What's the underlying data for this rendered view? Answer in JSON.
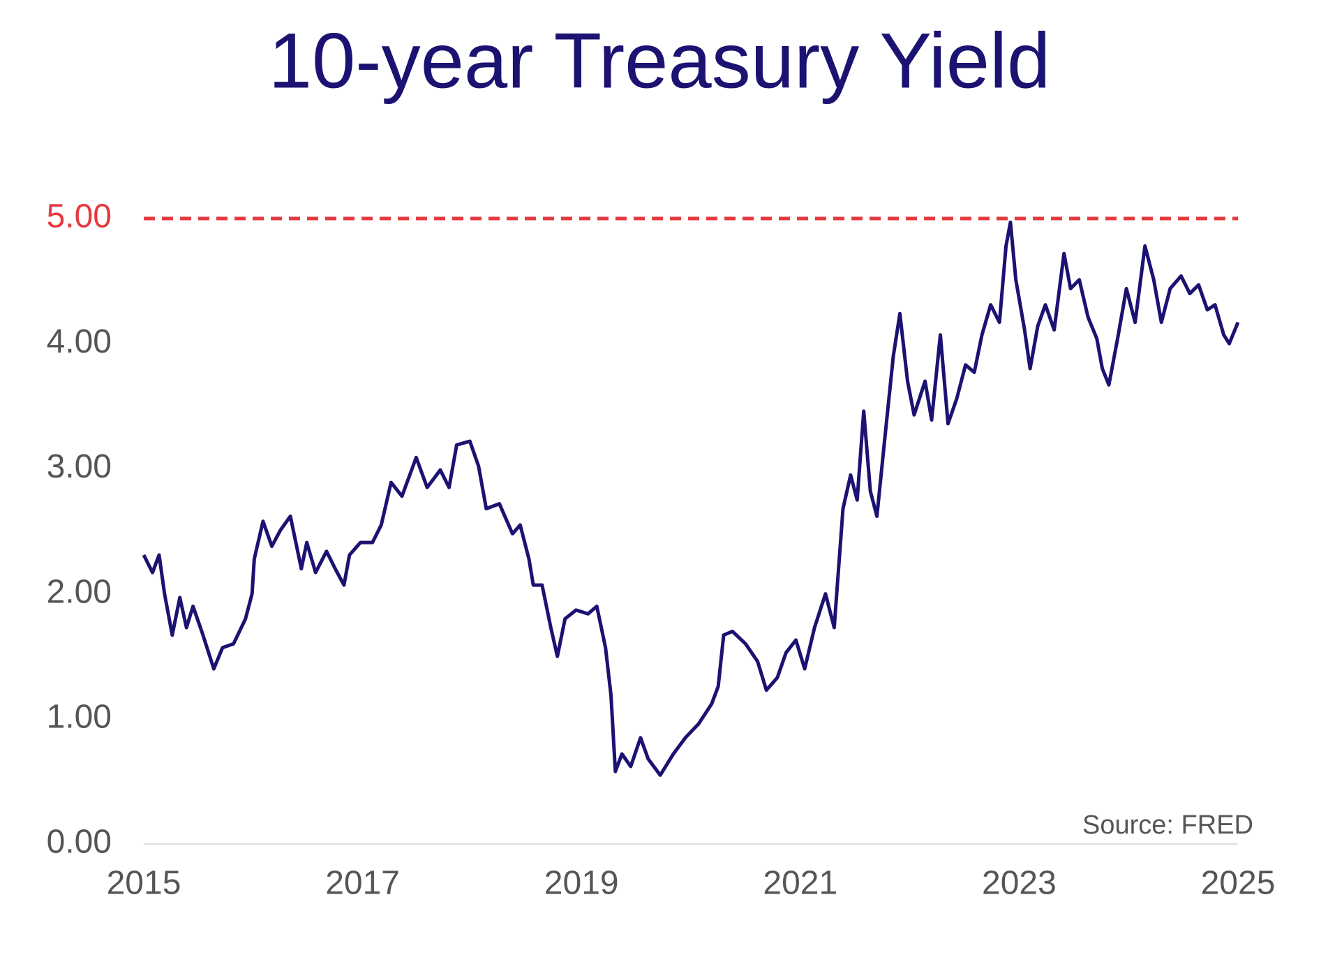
{
  "chart_data": {
    "type": "line",
    "title": "10-year Treasury Yield",
    "annotation": "Source: FRED",
    "color": "#1c1272",
    "reference_line": 5,
    "reference_color": "#e5393f",
    "xlim": [
      2015,
      2025
    ],
    "xticks": [
      2015,
      2017,
      2019,
      2021,
      2023,
      2025
    ],
    "ylim": [
      0,
      5
    ],
    "yticks": [
      {
        "value": 0,
        "label": "0.00"
      },
      {
        "value": 1,
        "label": "1.00"
      },
      {
        "value": 2,
        "label": "2.00"
      },
      {
        "value": 3,
        "label": "3.00"
      },
      {
        "value": 4,
        "label": "4.00"
      },
      {
        "value": 5,
        "label": "5.00"
      }
    ],
    "grid": false,
    "x": [
      2015.0,
      2015.08,
      2015.14,
      2015.19,
      2015.26,
      2015.33,
      2015.39,
      2015.45,
      2015.53,
      2015.64,
      2015.72,
      2015.82,
      2015.93,
      2015.99,
      2016.01,
      2016.09,
      2016.17,
      2016.25,
      2016.34,
      2016.44,
      2016.49,
      2016.57,
      2016.67,
      2016.75,
      2016.83,
      2016.88,
      2016.98,
      2017.09,
      2017.17,
      2017.26,
      2017.36,
      2017.49,
      2017.59,
      2017.71,
      2017.79,
      2017.86,
      2017.98,
      2018.06,
      2018.13,
      2018.25,
      2018.37,
      2018.44,
      2018.52,
      2018.56,
      2018.64,
      2018.72,
      2018.78,
      2018.85,
      2018.95,
      2019.06,
      2019.14,
      2019.22,
      2019.27,
      2019.31,
      2019.37,
      2019.45,
      2019.54,
      2019.61,
      2019.72,
      2019.84,
      2019.95,
      2020.07,
      2020.19,
      2020.25,
      2020.3,
      2020.38,
      2020.5,
      2020.61,
      2020.69,
      2020.79,
      2020.87,
      2020.96,
      2021.04,
      2021.13,
      2021.23,
      2021.31,
      2021.39,
      2021.46,
      2021.52,
      2021.58,
      2021.64,
      2021.7,
      2021.77,
      2021.85,
      2021.91,
      2021.98,
      2022.04,
      2022.14,
      2022.2,
      2022.28,
      2022.35,
      2022.43,
      2022.51,
      2022.59,
      2022.66,
      2022.74,
      2022.82,
      2022.88,
      2022.92,
      2022.97,
      2023.05,
      2023.1,
      2023.17,
      2023.24,
      2023.32,
      2023.41,
      2023.47,
      2023.55,
      2023.63,
      2023.71,
      2023.76,
      2023.82,
      2023.9,
      2023.98,
      2024.06,
      2024.15,
      2024.23,
      2024.3,
      2024.38,
      2024.48,
      2024.56,
      2024.64,
      2024.72,
      2024.79,
      2024.87,
      2024.92,
      2025.0
    ],
    "values": [
      2.31,
      2.17,
      2.31,
      2.0,
      1.67,
      1.97,
      1.73,
      1.9,
      1.7,
      1.4,
      1.57,
      1.6,
      1.8,
      2.0,
      2.28,
      2.58,
      2.38,
      2.51,
      2.62,
      2.2,
      2.41,
      2.17,
      2.34,
      2.2,
      2.07,
      2.31,
      2.41,
      2.41,
      2.55,
      2.89,
      2.78,
      3.09,
      2.85,
      2.99,
      2.85,
      3.19,
      3.22,
      3.02,
      2.68,
      2.72,
      2.48,
      2.55,
      2.28,
      2.07,
      2.07,
      1.73,
      1.5,
      1.8,
      1.87,
      1.84,
      1.9,
      1.57,
      1.19,
      0.58,
      0.72,
      0.62,
      0.85,
      0.68,
      0.55,
      0.72,
      0.85,
      0.96,
      1.12,
      1.26,
      1.67,
      1.7,
      1.6,
      1.46,
      1.23,
      1.33,
      1.53,
      1.63,
      1.4,
      1.73,
      2.0,
      1.73,
      2.68,
      2.95,
      2.75,
      3.46,
      2.82,
      2.62,
      3.22,
      3.9,
      4.24,
      3.7,
      3.43,
      3.7,
      3.39,
      4.07,
      3.36,
      3.56,
      3.83,
      3.77,
      4.07,
      4.31,
      4.17,
      4.78,
      4.97,
      4.51,
      4.11,
      3.8,
      4.14,
      4.31,
      4.11,
      4.72,
      4.44,
      4.51,
      4.21,
      4.04,
      3.8,
      3.67,
      4.04,
      4.44,
      4.17,
      4.78,
      4.51,
      4.17,
      4.44,
      4.54,
      4.4,
      4.47,
      4.27,
      4.31,
      4.07,
      4.0,
      4.17
    ]
  }
}
